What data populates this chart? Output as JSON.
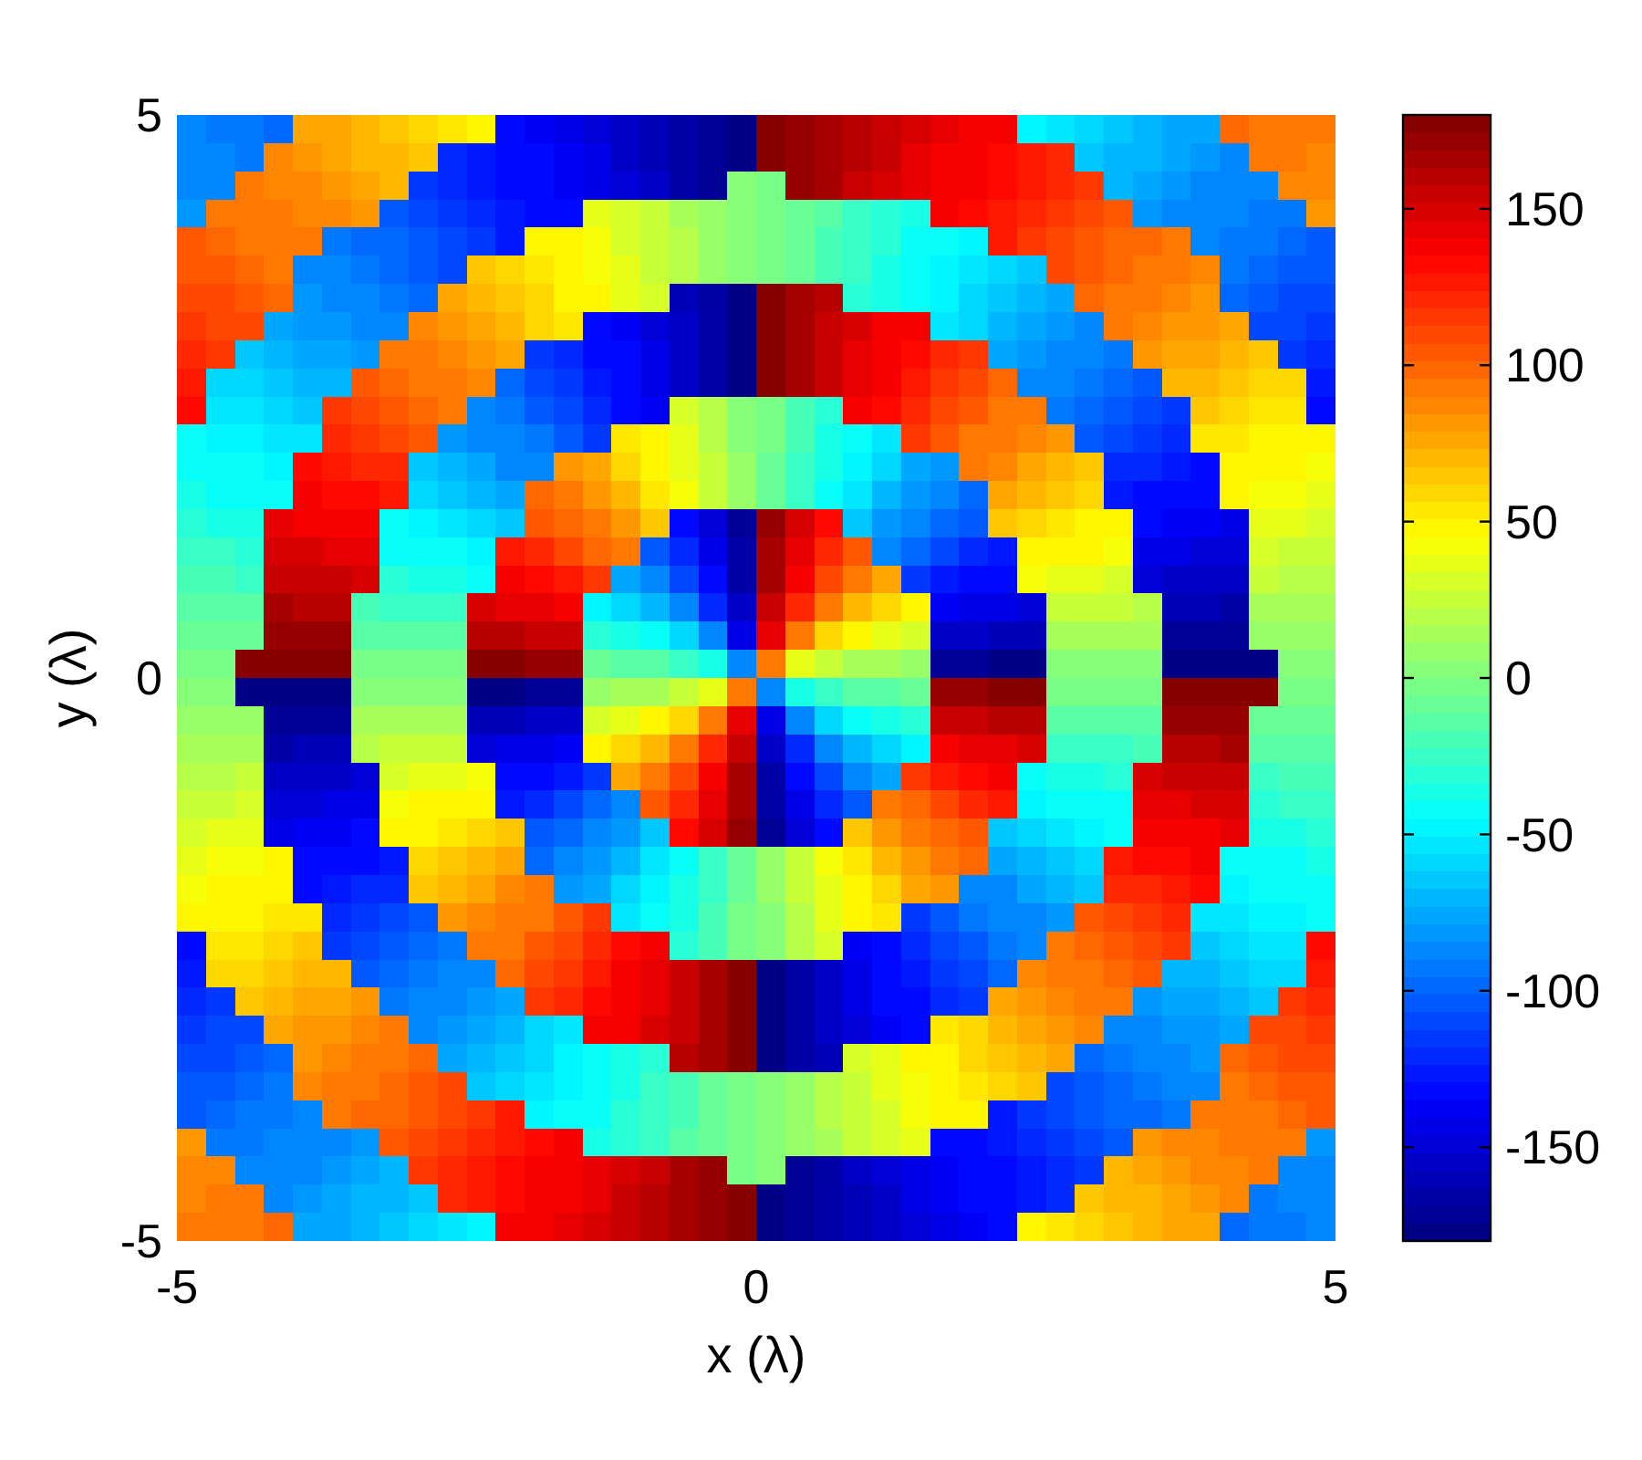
{
  "chart_data": {
    "type": "heatmap",
    "xlabel": "x (λ)",
    "ylabel": "y (λ)",
    "xlim": [
      -5,
      5
    ],
    "ylim": [
      -5,
      5
    ],
    "xticks": [
      -5,
      0,
      5
    ],
    "yticks": [
      -5,
      0,
      5
    ],
    "clim": [
      -180,
      180
    ],
    "cticks": [
      -150,
      -100,
      -50,
      0,
      50,
      100,
      150
    ],
    "cells": [
      [
        -90,
        -95,
        -95,
        -100,
        75,
        75,
        70,
        65,
        60,
        55,
        50,
        -135,
        -140,
        -145,
        -150,
        -155,
        -160,
        -165,
        -170,
        -175,
        175,
        170,
        165,
        160,
        155,
        150,
        145,
        140,
        135,
        -50,
        -55,
        -60,
        -65,
        -70,
        -75,
        -75,
        100,
        95,
        95,
        90
      ],
      [
        -85,
        -90,
        -95,
        85,
        80,
        75,
        70,
        70,
        65,
        -120,
        -125,
        -130,
        -135,
        -140,
        -145,
        -155,
        -160,
        -165,
        -170,
        -175,
        175,
        170,
        165,
        160,
        155,
        145,
        140,
        135,
        130,
        125,
        120,
        -65,
        -70,
        -70,
        -75,
        -80,
        -85,
        95,
        90,
        85
      ],
      [
        -85,
        -85,
        90,
        85,
        85,
        80,
        75,
        70,
        -115,
        -120,
        -125,
        -130,
        -135,
        -140,
        -145,
        -150,
        -155,
        -165,
        -170,
        5,
        -5,
        170,
        165,
        155,
        150,
        145,
        140,
        135,
        130,
        125,
        120,
        115,
        -70,
        -75,
        -80,
        -85,
        -85,
        -90,
        85,
        85
      ],
      [
        -80,
        95,
        95,
        90,
        85,
        85,
        80,
        -105,
        -110,
        -115,
        -120,
        -125,
        -130,
        -135,
        35,
        30,
        25,
        15,
        10,
        5,
        -5,
        -10,
        -15,
        -25,
        -30,
        -35,
        135,
        130,
        125,
        120,
        115,
        110,
        105,
        -80,
        -85,
        -85,
        -90,
        -95,
        -95,
        80
      ],
      [
        105,
        100,
        95,
        95,
        90,
        -95,
        -100,
        -100,
        -105,
        -110,
        -115,
        -125,
        50,
        45,
        40,
        30,
        25,
        20,
        10,
        5,
        -5,
        -10,
        -20,
        -25,
        -30,
        -40,
        -45,
        -50,
        125,
        115,
        110,
        105,
        100,
        100,
        95,
        -90,
        -95,
        -95,
        -100,
        -105
      ],
      [
        105,
        105,
        100,
        95,
        -85,
        -90,
        -95,
        -100,
        -105,
        -110,
        65,
        60,
        55,
        50,
        40,
        35,
        25,
        20,
        10,
        5,
        -5,
        -10,
        -20,
        -25,
        -35,
        -40,
        -50,
        -55,
        -60,
        -65,
        110,
        105,
        100,
        95,
        90,
        85,
        -95,
        -100,
        -105,
        -105
      ],
      [
        110,
        110,
        105,
        100,
        -80,
        -85,
        -90,
        -95,
        -100,
        75,
        70,
        65,
        60,
        50,
        45,
        35,
        30,
        -160,
        -165,
        -175,
        175,
        165,
        160,
        -30,
        -35,
        -45,
        -50,
        -60,
        -65,
        -70,
        -75,
        100,
        95,
        90,
        85,
        80,
        -100,
        -105,
        -110,
        -110
      ],
      [
        115,
        110,
        110,
        -75,
        -80,
        -80,
        -85,
        -90,
        85,
        80,
        75,
        70,
        60,
        55,
        -135,
        -140,
        -150,
        -155,
        -165,
        -175,
        175,
        165,
        155,
        150,
        140,
        135,
        -55,
        -60,
        -70,
        -75,
        -80,
        -85,
        90,
        85,
        80,
        80,
        75,
        -110,
        -110,
        -115
      ],
      [
        120,
        115,
        -65,
        -70,
        -75,
        -75,
        -80,
        95,
        90,
        85,
        80,
        75,
        -115,
        -120,
        -130,
        -135,
        -145,
        -155,
        -165,
        -175,
        175,
        165,
        155,
        145,
        135,
        130,
        120,
        115,
        -75,
        -80,
        -85,
        -90,
        -95,
        80,
        75,
        75,
        70,
        65,
        -115,
        -120
      ],
      [
        125,
        -60,
        -60,
        -65,
        -70,
        -70,
        105,
        100,
        95,
        90,
        85,
        -100,
        -110,
        -115,
        -125,
        -135,
        -145,
        -155,
        -165,
        -175,
        175,
        165,
        155,
        145,
        135,
        125,
        115,
        110,
        100,
        -85,
        -90,
        -95,
        -100,
        -105,
        70,
        70,
        65,
        60,
        60,
        -125
      ],
      [
        130,
        -55,
        -55,
        -60,
        -65,
        115,
        110,
        105,
        100,
        95,
        -90,
        -95,
        -105,
        -110,
        -120,
        -130,
        -140,
        30,
        20,
        5,
        -5,
        -20,
        -30,
        140,
        130,
        120,
        110,
        105,
        95,
        90,
        -95,
        -100,
        -105,
        -110,
        -115,
        65,
        60,
        55,
        55,
        -130
      ],
      [
        -45,
        -50,
        -50,
        -55,
        -55,
        120,
        115,
        110,
        105,
        -80,
        -85,
        -90,
        -95,
        -105,
        -115,
        55,
        45,
        35,
        20,
        5,
        -5,
        -20,
        -35,
        -45,
        -55,
        115,
        105,
        95,
        90,
        85,
        80,
        -105,
        -110,
        -115,
        -120,
        55,
        55,
        50,
        50,
        45
      ],
      [
        -40,
        -45,
        -45,
        -50,
        130,
        125,
        120,
        120,
        -65,
        -70,
        -75,
        -85,
        -90,
        80,
        75,
        60,
        50,
        35,
        25,
        10,
        -10,
        -25,
        -35,
        -50,
        -60,
        -75,
        -80,
        90,
        85,
        75,
        70,
        65,
        -120,
        -120,
        -125,
        -130,
        50,
        45,
        45,
        40
      ],
      [
        -35,
        -40,
        -40,
        -45,
        135,
        130,
        130,
        125,
        -60,
        -65,
        -70,
        -75,
        100,
        90,
        80,
        70,
        55,
        40,
        25,
        10,
        -10,
        -25,
        -40,
        -55,
        -70,
        -80,
        -90,
        -100,
        75,
        70,
        65,
        60,
        -125,
        -130,
        -130,
        -135,
        45,
        40,
        40,
        35
      ],
      [
        -30,
        -35,
        -35,
        145,
        140,
        140,
        135,
        -45,
        -50,
        -55,
        -60,
        -65,
        105,
        100,
        90,
        80,
        65,
        -130,
        -150,
        -170,
        170,
        150,
        130,
        -65,
        -80,
        -90,
        -100,
        -105,
        65,
        60,
        55,
        50,
        45,
        -135,
        -140,
        -140,
        -145,
        35,
        35,
        30
      ],
      [
        -25,
        -25,
        -30,
        150,
        150,
        145,
        145,
        -40,
        -45,
        -45,
        -50,
        125,
        120,
        110,
        100,
        90,
        -105,
        -120,
        -145,
        -165,
        165,
        145,
        120,
        105,
        -90,
        -100,
        -110,
        -120,
        -125,
        50,
        45,
        45,
        40,
        -145,
        -145,
        -150,
        -150,
        30,
        25,
        25
      ],
      [
        -20,
        -20,
        -25,
        155,
        155,
        155,
        150,
        -30,
        -35,
        -35,
        -40,
        135,
        130,
        125,
        115,
        -75,
        -90,
        -110,
        -135,
        -165,
        165,
        135,
        110,
        90,
        75,
        -115,
        -125,
        -130,
        -135,
        40,
        35,
        35,
        30,
        -150,
        -155,
        -155,
        -155,
        25,
        20,
        20
      ],
      [
        -15,
        -15,
        -15,
        165,
        160,
        160,
        -20,
        -25,
        -25,
        -25,
        150,
        145,
        145,
        140,
        -50,
        -60,
        -70,
        -90,
        -120,
        -155,
        155,
        120,
        90,
        70,
        60,
        50,
        -140,
        -145,
        -145,
        -150,
        25,
        25,
        25,
        20,
        -160,
        -160,
        -165,
        15,
        15,
        15
      ],
      [
        -10,
        -10,
        -10,
        170,
        170,
        170,
        -15,
        -15,
        -15,
        -15,
        160,
        160,
        155,
        155,
        -30,
        -35,
        -45,
        -60,
        -90,
        -145,
        145,
        90,
        60,
        45,
        35,
        30,
        -155,
        -155,
        -160,
        -160,
        15,
        15,
        15,
        15,
        -170,
        -170,
        -170,
        10,
        10,
        10
      ],
      [
        -5,
        -5,
        175,
        175,
        175,
        175,
        -5,
        -5,
        -5,
        -5,
        175,
        175,
        170,
        170,
        -10,
        -15,
        -15,
        -25,
        -35,
        -90,
        90,
        35,
        25,
        15,
        15,
        10,
        -170,
        -170,
        -175,
        -175,
        5,
        5,
        5,
        5,
        -175,
        -175,
        -175,
        -175,
        5,
        5
      ],
      [
        5,
        5,
        -175,
        -175,
        -175,
        -175,
        5,
        5,
        5,
        5,
        -175,
        -175,
        -170,
        -170,
        10,
        15,
        15,
        25,
        35,
        90,
        -90,
        -35,
        -25,
        -15,
        -15,
        -10,
        170,
        170,
        175,
        175,
        -5,
        -5,
        -5,
        -5,
        175,
        175,
        175,
        175,
        -5,
        -5
      ],
      [
        10,
        10,
        10,
        -170,
        -170,
        -170,
        15,
        15,
        15,
        15,
        -160,
        -160,
        -155,
        -155,
        30,
        35,
        45,
        60,
        90,
        145,
        -145,
        -90,
        -60,
        -45,
        -35,
        -30,
        155,
        155,
        160,
        160,
        -15,
        -15,
        -15,
        -15,
        170,
        170,
        170,
        -10,
        -10,
        -10
      ],
      [
        15,
        15,
        15,
        -165,
        -160,
        -160,
        20,
        25,
        25,
        25,
        -150,
        -145,
        -145,
        -140,
        50,
        60,
        70,
        90,
        120,
        155,
        -155,
        -120,
        -90,
        -70,
        -60,
        -50,
        140,
        145,
        145,
        150,
        -25,
        -25,
        -25,
        -20,
        160,
        160,
        165,
        -15,
        -15,
        -15
      ],
      [
        20,
        20,
        25,
        -155,
        -155,
        -155,
        -150,
        30,
        35,
        35,
        40,
        -135,
        -130,
        -125,
        -115,
        75,
        90,
        110,
        135,
        165,
        -165,
        -135,
        -110,
        -90,
        -75,
        115,
        125,
        130,
        135,
        -40,
        -35,
        -35,
        -30,
        150,
        155,
        155,
        155,
        -25,
        -20,
        -20
      ],
      [
        25,
        25,
        30,
        -150,
        -150,
        -145,
        -145,
        40,
        45,
        45,
        50,
        -125,
        -120,
        -110,
        -100,
        -90,
        105,
        120,
        145,
        165,
        -165,
        -145,
        -120,
        -105,
        90,
        100,
        110,
        120,
        125,
        -50,
        -45,
        -45,
        -40,
        145,
        145,
        150,
        150,
        -30,
        -25,
        -25
      ],
      [
        30,
        35,
        35,
        -145,
        -140,
        -140,
        -135,
        45,
        50,
        55,
        60,
        65,
        -105,
        -100,
        -90,
        -80,
        -65,
        130,
        150,
        170,
        -170,
        -150,
        -130,
        65,
        80,
        90,
        100,
        105,
        -65,
        -60,
        -55,
        -50,
        -45,
        135,
        140,
        140,
        145,
        -35,
        -35,
        -30
      ],
      [
        35,
        40,
        40,
        45,
        -135,
        -130,
        -130,
        -125,
        60,
        65,
        70,
        75,
        -100,
        -90,
        -80,
        -70,
        -55,
        -40,
        -25,
        -10,
        10,
        25,
        40,
        55,
        70,
        80,
        90,
        100,
        -75,
        -70,
        -65,
        -60,
        125,
        130,
        130,
        135,
        -45,
        -40,
        -40,
        -35
      ],
      [
        40,
        45,
        45,
        50,
        -130,
        -125,
        -120,
        -120,
        65,
        70,
        75,
        85,
        90,
        -80,
        -75,
        -60,
        -50,
        -35,
        -25,
        -10,
        10,
        25,
        35,
        50,
        60,
        75,
        80,
        -90,
        -85,
        -75,
        -70,
        -65,
        120,
        120,
        125,
        130,
        -50,
        -45,
        -45,
        -40
      ],
      [
        45,
        50,
        50,
        55,
        55,
        -120,
        -115,
        -110,
        -105,
        80,
        85,
        90,
        95,
        105,
        115,
        -55,
        -45,
        -35,
        -20,
        -5,
        5,
        20,
        35,
        45,
        55,
        -115,
        -105,
        -95,
        -90,
        -85,
        -80,
        105,
        110,
        115,
        120,
        -55,
        -55,
        -50,
        -50,
        -45
      ],
      [
        -130,
        55,
        55,
        60,
        65,
        -115,
        -110,
        -105,
        -100,
        -95,
        90,
        95,
        105,
        110,
        120,
        130,
        140,
        -30,
        -20,
        -5,
        5,
        20,
        30,
        -140,
        -130,
        -120,
        -110,
        -105,
        -95,
        -90,
        95,
        100,
        105,
        110,
        115,
        -65,
        -60,
        -55,
        -55,
        130
      ],
      [
        -125,
        60,
        60,
        65,
        70,
        70,
        -105,
        -100,
        -95,
        -90,
        -85,
        100,
        110,
        115,
        125,
        135,
        145,
        155,
        165,
        175,
        -175,
        -165,
        -155,
        -145,
        -135,
        -125,
        -115,
        -110,
        -100,
        85,
        90,
        95,
        100,
        105,
        -70,
        -70,
        -65,
        -60,
        -60,
        125
      ],
      [
        -120,
        -115,
        65,
        70,
        75,
        75,
        80,
        -95,
        -90,
        -85,
        -80,
        -75,
        115,
        120,
        130,
        135,
        145,
        155,
        165,
        175,
        -175,
        -165,
        -155,
        -145,
        -135,
        -130,
        -120,
        -115,
        75,
        80,
        85,
        90,
        95,
        -80,
        -75,
        -75,
        -70,
        -65,
        115,
        120
      ],
      [
        -115,
        -110,
        -110,
        75,
        80,
        80,
        85,
        90,
        -85,
        -80,
        -75,
        -70,
        -60,
        -55,
        135,
        140,
        150,
        155,
        165,
        175,
        -175,
        -165,
        -155,
        -150,
        -140,
        -135,
        55,
        60,
        70,
        75,
        80,
        85,
        -90,
        -85,
        -80,
        -80,
        -75,
        110,
        110,
        115
      ],
      [
        -110,
        -110,
        -105,
        -100,
        80,
        85,
        90,
        95,
        100,
        -75,
        -70,
        -65,
        -60,
        -50,
        -45,
        -35,
        -30,
        160,
        165,
        175,
        -175,
        -165,
        -160,
        30,
        35,
        45,
        50,
        60,
        65,
        70,
        75,
        -100,
        -95,
        -90,
        -85,
        -80,
        100,
        105,
        110,
        110
      ],
      [
        -105,
        -105,
        -100,
        -95,
        85,
        90,
        95,
        100,
        105,
        110,
        -65,
        -60,
        -55,
        -50,
        -40,
        -35,
        -25,
        -20,
        -10,
        -5,
        5,
        10,
        20,
        25,
        35,
        40,
        50,
        55,
        60,
        65,
        -110,
        -105,
        -100,
        -95,
        -90,
        -85,
        95,
        100,
        105,
        105
      ],
      [
        -105,
        -100,
        -95,
        -95,
        -90,
        95,
        100,
        100,
        105,
        110,
        115,
        125,
        -50,
        -45,
        -40,
        -30,
        -25,
        -20,
        -10,
        -5,
        5,
        10,
        20,
        25,
        30,
        40,
        45,
        50,
        -125,
        -115,
        -110,
        -105,
        -100,
        -100,
        -95,
        90,
        95,
        95,
        100,
        105
      ],
      [
        80,
        -95,
        -95,
        -90,
        -85,
        -85,
        -80,
        105,
        110,
        115,
        120,
        125,
        130,
        135,
        -35,
        -30,
        -25,
        -15,
        -10,
        -5,
        5,
        10,
        15,
        25,
        30,
        35,
        -135,
        -130,
        -125,
        -120,
        -115,
        -110,
        -105,
        80,
        85,
        85,
        90,
        95,
        95,
        -80
      ],
      [
        85,
        85,
        -90,
        -85,
        -85,
        -80,
        -75,
        -70,
        115,
        120,
        125,
        130,
        135,
        140,
        145,
        150,
        155,
        165,
        170,
        -5,
        5,
        -170,
        -165,
        -155,
        -150,
        -145,
        -140,
        -135,
        -130,
        -125,
        -120,
        -115,
        70,
        75,
        80,
        85,
        85,
        90,
        -85,
        -85
      ],
      [
        85,
        90,
        95,
        -85,
        -80,
        -75,
        -70,
        -70,
        -65,
        120,
        125,
        130,
        135,
        140,
        145,
        155,
        160,
        165,
        170,
        175,
        -175,
        -170,
        -165,
        -160,
        -155,
        -145,
        -140,
        -135,
        -130,
        -125,
        -120,
        65,
        70,
        70,
        75,
        80,
        85,
        -95,
        -90,
        -85
      ],
      [
        90,
        95,
        95,
        100,
        -75,
        -75,
        -70,
        -65,
        -60,
        -55,
        -50,
        135,
        140,
        145,
        150,
        155,
        160,
        165,
        170,
        175,
        -175,
        -170,
        -165,
        -160,
        -155,
        -150,
        -145,
        -140,
        -135,
        50,
        55,
        60,
        65,
        70,
        75,
        75,
        -100,
        -95,
        -95,
        -90
      ]
    ]
  }
}
